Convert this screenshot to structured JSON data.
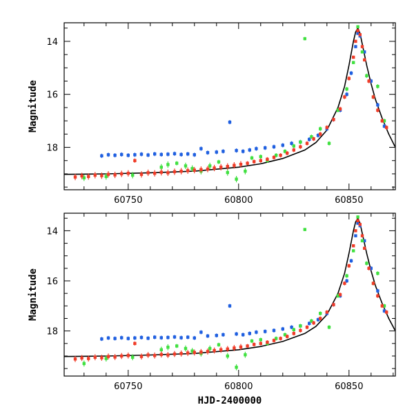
{
  "chart_data": [
    {
      "type": "scatter",
      "panel": "top",
      "ylabel": "Magnitude",
      "xlabel": "",
      "xlim": [
        60721,
        60871
      ],
      "ylim": [
        19.6,
        13.3
      ],
      "x_ticks": [
        60750,
        60800,
        60850
      ],
      "y_ticks": [
        14,
        16,
        18
      ],
      "colors": {
        "blue": "#1f5fe0",
        "green": "#40e040",
        "red": "#f03c28",
        "model": "#000000"
      },
      "model_curve": {
        "x": [
          60721,
          60740,
          60760,
          60780,
          60800,
          60810,
          60820,
          60830,
          60835,
          60840,
          60845,
          60848,
          60850,
          60852,
          60853,
          60854,
          60855,
          60856,
          60858,
          60860,
          60862,
          60865,
          60868,
          60871
        ],
        "y": [
          19.02,
          19.0,
          18.96,
          18.9,
          18.75,
          18.62,
          18.42,
          18.1,
          17.82,
          17.35,
          16.5,
          15.7,
          14.9,
          14.0,
          13.65,
          13.5,
          13.7,
          14.1,
          14.9,
          15.6,
          16.2,
          16.9,
          17.5,
          18.0
        ]
      },
      "series": [
        {
          "color": "blue",
          "x": [
            60738,
            60741,
            60744,
            60747,
            60750,
            60753,
            60756,
            60759,
            60762,
            60765,
            60768,
            60771,
            60774,
            60777,
            60780,
            60783,
            60786,
            60790,
            60793,
            60796,
            60799,
            60802,
            60805,
            60808,
            60812,
            60816,
            60820,
            60824,
            60828,
            60832,
            60836,
            60840,
            60843,
            60846,
            60849,
            60851,
            60853,
            60854,
            60855,
            60857,
            60860,
            60863,
            60866
          ],
          "y": [
            18.32,
            18.28,
            18.3,
            18.27,
            18.3,
            18.28,
            18.26,
            18.29,
            18.25,
            18.27,
            18.26,
            18.24,
            18.27,
            18.25,
            18.28,
            18.05,
            18.2,
            18.18,
            18.15,
            17.05,
            18.12,
            18.15,
            18.1,
            18.05,
            18.02,
            17.98,
            17.92,
            17.85,
            17.8,
            17.7,
            17.55,
            17.3,
            16.95,
            16.6,
            16.0,
            15.2,
            14.2,
            13.7,
            13.8,
            14.4,
            15.5,
            16.4,
            17.2
          ]
        },
        {
          "color": "green",
          "x": [
            60730,
            60740,
            60752,
            60765,
            60768,
            60772,
            60776,
            60779,
            60783,
            60787,
            60791,
            60795,
            60799,
            60803,
            60806,
            60810,
            60813,
            60817,
            60821,
            60825,
            60828,
            60830,
            60833,
            60837,
            60841,
            60845,
            60849,
            60852,
            60854,
            60856,
            60858,
            60861,
            60863,
            60866
          ],
          "y": [
            19.15,
            19.1,
            19.05,
            18.75,
            18.65,
            18.6,
            18.7,
            18.8,
            18.9,
            18.7,
            18.55,
            18.95,
            19.2,
            18.9,
            18.4,
            18.35,
            18.5,
            18.3,
            18.15,
            17.95,
            17.8,
            13.9,
            17.6,
            17.3,
            17.85,
            16.6,
            15.8,
            14.8,
            13.45,
            14.4,
            15.3,
            16.1,
            15.7,
            17.0
          ]
        },
        {
          "color": "red",
          "x": [
            60726,
            60729,
            60732,
            60735,
            60738,
            60741,
            60744,
            60747,
            60750,
            60753,
            60756,
            60759,
            60762,
            60765,
            60768,
            60771,
            60774,
            60777,
            60780,
            60783,
            60786,
            60789,
            60792,
            60795,
            60798,
            60801,
            60804,
            60807,
            60810,
            60813,
            60816,
            60819,
            60822,
            60825,
            60828,
            60831,
            60834,
            60837,
            60840,
            60843,
            60846,
            60848,
            60850,
            60852,
            60853,
            60854,
            60855,
            60856,
            60857,
            60859,
            60861,
            60863,
            60865,
            60867
          ],
          "y": [
            19.12,
            19.08,
            19.1,
            19.05,
            19.07,
            19.02,
            19.04,
            19.0,
            18.98,
            18.5,
            19.02,
            18.96,
            18.98,
            18.94,
            18.96,
            18.92,
            18.9,
            18.88,
            18.86,
            18.84,
            18.82,
            18.78,
            18.75,
            18.72,
            18.68,
            18.64,
            18.6,
            18.54,
            18.5,
            18.45,
            18.38,
            18.3,
            18.22,
            18.1,
            17.98,
            17.85,
            17.68,
            17.5,
            17.25,
            16.95,
            16.55,
            16.1,
            15.4,
            14.6,
            14.0,
            13.6,
            13.75,
            14.2,
            14.7,
            15.5,
            16.1,
            16.6,
            17.0,
            17.25
          ]
        }
      ]
    },
    {
      "type": "scatter",
      "panel": "bottom",
      "ylabel": "Magnitude",
      "xlabel": "HJD-2400000",
      "xlim": [
        60721,
        60871
      ],
      "ylim": [
        19.8,
        13.3
      ],
      "x_ticks": [
        60750,
        60800,
        60850
      ],
      "y_ticks": [
        14,
        16,
        18
      ],
      "colors": {
        "blue": "#1f5fe0",
        "green": "#40e040",
        "red": "#f03c28",
        "model": "#000000"
      },
      "model_curve": {
        "x": [
          60721,
          60740,
          60760,
          60780,
          60800,
          60810,
          60820,
          60830,
          60835,
          60840,
          60845,
          60848,
          60850,
          60852,
          60853,
          60854,
          60855,
          60856,
          60858,
          60860,
          60862,
          60865,
          60868,
          60871
        ],
        "y": [
          19.02,
          19.0,
          18.96,
          18.9,
          18.75,
          18.62,
          18.42,
          18.1,
          17.82,
          17.35,
          16.5,
          15.7,
          14.9,
          14.0,
          13.65,
          13.5,
          13.7,
          14.1,
          14.9,
          15.6,
          16.2,
          16.9,
          17.5,
          18.0
        ]
      },
      "series": [
        {
          "color": "blue",
          "x": [
            60738,
            60741,
            60744,
            60747,
            60750,
            60753,
            60756,
            60759,
            60762,
            60765,
            60768,
            60771,
            60774,
            60777,
            60780,
            60783,
            60786,
            60790,
            60793,
            60796,
            60799,
            60802,
            60805,
            60808,
            60812,
            60816,
            60820,
            60824,
            60828,
            60832,
            60836,
            60840,
            60843,
            60846,
            60849,
            60851,
            60853,
            60854,
            60855,
            60857,
            60860,
            60863,
            60866
          ],
          "y": [
            18.32,
            18.28,
            18.3,
            18.27,
            18.3,
            18.28,
            18.26,
            18.29,
            18.25,
            18.27,
            18.26,
            18.24,
            18.27,
            18.25,
            18.28,
            18.05,
            18.2,
            18.18,
            18.15,
            17.0,
            18.12,
            18.15,
            18.1,
            18.05,
            18.02,
            17.98,
            17.92,
            17.85,
            17.8,
            17.7,
            17.55,
            17.3,
            16.95,
            16.6,
            16.0,
            15.2,
            14.2,
            13.7,
            13.8,
            14.4,
            15.5,
            16.4,
            17.2
          ]
        },
        {
          "color": "green",
          "x": [
            60730,
            60740,
            60752,
            60765,
            60768,
            60772,
            60776,
            60779,
            60783,
            60787,
            60791,
            60795,
            60799,
            60803,
            60806,
            60810,
            60813,
            60817,
            60821,
            60825,
            60828,
            60830,
            60833,
            60837,
            60841,
            60845,
            60849,
            60852,
            60854,
            60856,
            60858,
            60861,
            60863,
            60866
          ],
          "y": [
            19.3,
            19.1,
            19.05,
            18.75,
            18.65,
            18.6,
            18.7,
            18.8,
            18.9,
            18.7,
            18.55,
            19.0,
            19.45,
            18.95,
            18.4,
            18.35,
            18.5,
            18.3,
            18.15,
            17.95,
            17.8,
            13.95,
            17.6,
            17.3,
            17.85,
            16.6,
            15.8,
            14.8,
            13.45,
            14.4,
            15.3,
            16.1,
            15.7,
            17.0
          ]
        },
        {
          "color": "red",
          "x": [
            60726,
            60729,
            60732,
            60735,
            60738,
            60741,
            60744,
            60747,
            60750,
            60753,
            60756,
            60759,
            60762,
            60765,
            60768,
            60771,
            60774,
            60777,
            60780,
            60783,
            60786,
            60789,
            60792,
            60795,
            60798,
            60801,
            60804,
            60807,
            60810,
            60813,
            60816,
            60819,
            60822,
            60825,
            60828,
            60831,
            60834,
            60837,
            60840,
            60843,
            60846,
            60848,
            60850,
            60852,
            60853,
            60854,
            60855,
            60856,
            60857,
            60859,
            60861,
            60863,
            60865,
            60867
          ],
          "y": [
            19.12,
            19.08,
            19.1,
            19.05,
            19.07,
            19.02,
            19.04,
            19.0,
            18.98,
            18.5,
            19.02,
            18.96,
            18.98,
            18.94,
            18.96,
            18.92,
            18.9,
            18.88,
            18.86,
            18.84,
            18.82,
            18.78,
            18.75,
            18.72,
            18.68,
            18.64,
            18.6,
            18.54,
            18.5,
            18.45,
            18.38,
            18.3,
            18.22,
            18.1,
            17.98,
            17.85,
            17.68,
            17.5,
            17.25,
            16.95,
            16.55,
            16.1,
            15.4,
            14.6,
            14.0,
            13.6,
            13.75,
            14.2,
            14.7,
            15.5,
            16.1,
            16.6,
            17.0,
            17.25
          ]
        }
      ]
    }
  ]
}
